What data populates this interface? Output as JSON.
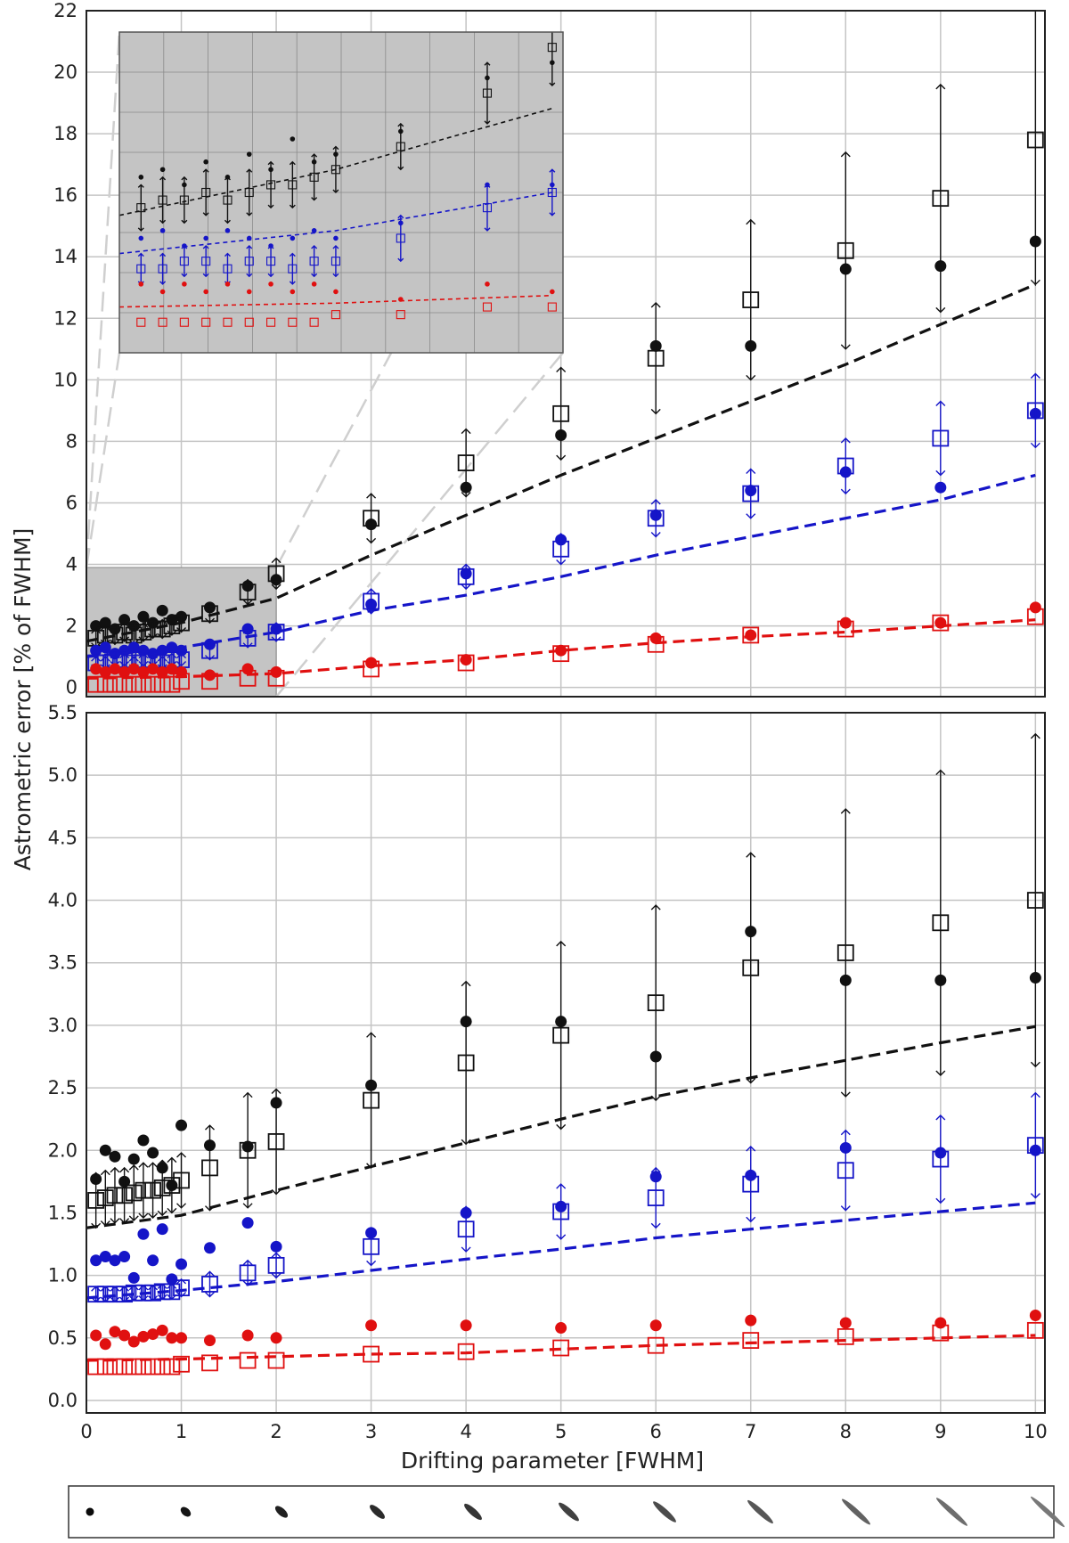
{
  "figure": {
    "ylabel": "Astrometric error  [% of FWHM]",
    "xlabel": "Drifting parameter [FWHM]"
  },
  "colors": {
    "black": "#111111",
    "blue": "#1515c8",
    "red": "#e01010",
    "grid": "#c4c4c4",
    "inset_bg": "#c4c4c4"
  },
  "chart_data": [
    {
      "type": "scatter",
      "panel": "top",
      "xlim": [
        0,
        10.1
      ],
      "ylim": [
        -0.3,
        22
      ],
      "yticks": [
        0,
        2,
        4,
        6,
        8,
        10,
        12,
        14,
        16,
        18,
        20,
        22
      ],
      "xticks": [
        0,
        1,
        2,
        3,
        4,
        5,
        6,
        7,
        8,
        9,
        10
      ],
      "grid": true,
      "highlight_region": {
        "x": [
          0,
          2
        ],
        "y": [
          -0.3,
          3.9
        ]
      },
      "series": [
        {
          "name": "black filled circles",
          "color": "black",
          "marker": "circle",
          "x": [
            0.1,
            0.2,
            0.3,
            0.4,
            0.5,
            0.6,
            0.7,
            0.8,
            0.9,
            1.0,
            1.3,
            1.7,
            2.0,
            3.0,
            4.0,
            5.0,
            6.0,
            7.0,
            8.0,
            9.0,
            10.0
          ],
          "y": [
            2.0,
            2.1,
            1.9,
            2.2,
            2.0,
            2.3,
            2.1,
            2.5,
            2.2,
            2.3,
            2.6,
            3.3,
            3.5,
            5.3,
            6.5,
            8.2,
            11.1,
            11.1,
            13.6,
            13.7,
            14.5
          ]
        },
        {
          "name": "black open squares",
          "color": "black",
          "marker": "square",
          "x": [
            0.1,
            0.2,
            0.3,
            0.4,
            0.5,
            0.6,
            0.7,
            0.8,
            0.9,
            1.0,
            1.3,
            1.7,
            2.0,
            3.0,
            4.0,
            5.0,
            6.0,
            7.0,
            8.0,
            9.0,
            10.0
          ],
          "y": [
            1.6,
            1.7,
            1.7,
            1.8,
            1.7,
            1.8,
            1.9,
            1.9,
            2.0,
            2.1,
            2.4,
            3.1,
            3.7,
            5.5,
            7.3,
            8.9,
            10.7,
            12.6,
            14.2,
            15.9,
            17.8
          ],
          "err": [
            0.3,
            0.3,
            0.3,
            0.3,
            0.3,
            0.3,
            0.3,
            0.3,
            0.3,
            0.3,
            0.3,
            0.4,
            0.5,
            0.8,
            1.1,
            1.5,
            1.8,
            2.6,
            3.2,
            3.7,
            4.7
          ]
        },
        {
          "name": "black fit",
          "color": "black",
          "style": "dashed",
          "x": [
            0,
            1,
            2,
            3,
            4,
            5,
            6,
            7,
            8,
            9,
            10
          ],
          "y": [
            1.5,
            2.1,
            2.9,
            4.3,
            5.6,
            6.9,
            8.1,
            9.3,
            10.5,
            11.8,
            13.1
          ]
        },
        {
          "name": "blue filled circles",
          "color": "blue",
          "marker": "circle",
          "x": [
            0.1,
            0.2,
            0.3,
            0.4,
            0.5,
            0.6,
            0.7,
            0.8,
            0.9,
            1.0,
            1.3,
            1.7,
            2.0,
            3.0,
            4.0,
            5.0,
            6.0,
            7.0,
            8.0,
            9.0,
            10.0
          ],
          "y": [
            1.2,
            1.3,
            1.1,
            1.2,
            1.3,
            1.2,
            1.1,
            1.2,
            1.3,
            1.2,
            1.4,
            1.9,
            1.9,
            2.7,
            3.7,
            4.8,
            5.6,
            6.4,
            7.0,
            6.5,
            8.9
          ]
        },
        {
          "name": "blue open squares",
          "color": "blue",
          "marker": "square",
          "x": [
            0.1,
            0.2,
            0.3,
            0.4,
            0.5,
            0.6,
            0.7,
            0.8,
            0.9,
            1.0,
            1.3,
            1.7,
            2.0,
            3.0,
            4.0,
            5.0,
            6.0,
            7.0,
            8.0,
            9.0,
            10.0
          ],
          "y": [
            0.8,
            0.8,
            0.9,
            0.9,
            0.8,
            0.9,
            0.9,
            0.8,
            0.9,
            0.9,
            1.2,
            1.6,
            1.8,
            2.8,
            3.6,
            4.5,
            5.5,
            6.3,
            7.2,
            8.1,
            9.0
          ],
          "err": [
            0.2,
            0.2,
            0.2,
            0.2,
            0.2,
            0.2,
            0.2,
            0.2,
            0.2,
            0.2,
            0.3,
            0.3,
            0.3,
            0.4,
            0.4,
            0.5,
            0.6,
            0.8,
            0.9,
            1.2,
            1.2
          ]
        },
        {
          "name": "blue fit",
          "color": "blue",
          "style": "dashed",
          "x": [
            0,
            1,
            2,
            3,
            4,
            5,
            6,
            7,
            8,
            9,
            10
          ],
          "y": [
            1.0,
            1.3,
            1.8,
            2.5,
            3.0,
            3.6,
            4.3,
            4.9,
            5.5,
            6.1,
            6.9
          ]
        },
        {
          "name": "red filled circles",
          "color": "red",
          "marker": "circle",
          "x": [
            0.1,
            0.2,
            0.3,
            0.4,
            0.5,
            0.6,
            0.7,
            0.8,
            0.9,
            1.0,
            1.3,
            1.7,
            2.0,
            3.0,
            4.0,
            5.0,
            6.0,
            7.0,
            8.0,
            9.0,
            10.0
          ],
          "y": [
            0.6,
            0.5,
            0.6,
            0.5,
            0.6,
            0.5,
            0.6,
            0.5,
            0.6,
            0.5,
            0.4,
            0.6,
            0.5,
            0.8,
            0.9,
            1.2,
            1.6,
            1.7,
            2.1,
            2.1,
            2.6
          ]
        },
        {
          "name": "red open squares",
          "color": "red",
          "marker": "square",
          "x": [
            0.1,
            0.2,
            0.3,
            0.4,
            0.5,
            0.6,
            0.7,
            0.8,
            0.9,
            1.0,
            1.3,
            1.7,
            2.0,
            3.0,
            4.0,
            5.0,
            6.0,
            7.0,
            8.0,
            9.0,
            10.0
          ],
          "y": [
            0.1,
            0.1,
            0.1,
            0.1,
            0.1,
            0.1,
            0.1,
            0.1,
            0.1,
            0.2,
            0.2,
            0.3,
            0.3,
            0.6,
            0.8,
            1.1,
            1.4,
            1.7,
            1.9,
            2.1,
            2.3
          ]
        },
        {
          "name": "red fit",
          "color": "red",
          "style": "dashed",
          "x": [
            0,
            1,
            2,
            3,
            4,
            5,
            6,
            7,
            8,
            9,
            10
          ],
          "y": [
            0.3,
            0.35,
            0.45,
            0.7,
            0.9,
            1.2,
            1.45,
            1.65,
            1.8,
            2.0,
            2.2
          ]
        }
      ]
    },
    {
      "type": "scatter",
      "panel": "bottom",
      "xlim": [
        0,
        10.1
      ],
      "ylim": [
        -0.1,
        5.5
      ],
      "yticks": [
        0.0,
        0.5,
        1.0,
        1.5,
        2.0,
        2.5,
        3.0,
        3.5,
        4.0,
        4.5,
        5.0,
        5.5
      ],
      "xticks": [
        0,
        1,
        2,
        3,
        4,
        5,
        6,
        7,
        8,
        9,
        10
      ],
      "grid": true,
      "series": [
        {
          "name": "black filled circles",
          "color": "black",
          "marker": "circle",
          "x": [
            0.1,
            0.2,
            0.3,
            0.4,
            0.5,
            0.6,
            0.7,
            0.8,
            0.9,
            1.0,
            1.3,
            1.7,
            2.0,
            3.0,
            4.0,
            5.0,
            6.0,
            7.0,
            8.0,
            9.0,
            10.0
          ],
          "y": [
            1.77,
            2.0,
            1.95,
            1.75,
            1.93,
            2.08,
            1.98,
            1.86,
            1.72,
            2.2,
            2.04,
            2.03,
            2.38,
            2.52,
            3.03,
            3.03,
            2.75,
            3.75,
            3.36,
            3.36,
            3.38
          ]
        },
        {
          "name": "black open squares",
          "color": "black",
          "marker": "square",
          "x": [
            0.1,
            0.2,
            0.3,
            0.4,
            0.5,
            0.6,
            0.7,
            0.8,
            0.9,
            1.0,
            1.3,
            1.7,
            2.0,
            3.0,
            4.0,
            5.0,
            6.0,
            7.0,
            8.0,
            9.0,
            10.0
          ],
          "y": [
            1.6,
            1.62,
            1.64,
            1.64,
            1.66,
            1.68,
            1.68,
            1.7,
            1.72,
            1.76,
            1.86,
            2.0,
            2.07,
            2.4,
            2.7,
            2.92,
            3.18,
            3.46,
            3.58,
            3.82,
            4.0
          ],
          "err": [
            0.22,
            0.22,
            0.22,
            0.22,
            0.22,
            0.22,
            0.22,
            0.22,
            0.22,
            0.22,
            0.34,
            0.46,
            0.42,
            0.54,
            0.65,
            0.75,
            0.78,
            0.92,
            1.15,
            1.22,
            1.33
          ]
        },
        {
          "name": "black fit",
          "color": "black",
          "style": "dashed",
          "x": [
            0,
            1,
            2,
            3,
            4,
            5,
            6,
            7,
            8,
            9,
            10
          ],
          "y": [
            1.38,
            1.48,
            1.68,
            1.87,
            2.06,
            2.25,
            2.43,
            2.58,
            2.72,
            2.86,
            2.99
          ]
        },
        {
          "name": "blue filled circles",
          "color": "blue",
          "marker": "circle",
          "x": [
            0.1,
            0.2,
            0.3,
            0.4,
            0.5,
            0.6,
            0.7,
            0.8,
            0.9,
            1.0,
            1.3,
            1.7,
            2.0,
            3.0,
            4.0,
            5.0,
            6.0,
            7.0,
            8.0,
            9.0,
            10.0
          ],
          "y": [
            1.12,
            1.15,
            1.12,
            1.15,
            0.98,
            1.33,
            1.12,
            1.37,
            0.97,
            1.09,
            1.22,
            1.42,
            1.23,
            1.34,
            1.5,
            1.55,
            1.79,
            1.8,
            2.02,
            1.98,
            2.0
          ]
        },
        {
          "name": "blue open squares",
          "color": "blue",
          "marker": "square",
          "x": [
            0.1,
            0.2,
            0.3,
            0.4,
            0.5,
            0.6,
            0.7,
            0.8,
            0.9,
            1.0,
            1.3,
            1.7,
            2.0,
            3.0,
            4.0,
            5.0,
            6.0,
            7.0,
            8.0,
            9.0,
            10.0
          ],
          "y": [
            0.85,
            0.85,
            0.85,
            0.85,
            0.86,
            0.86,
            0.86,
            0.87,
            0.87,
            0.9,
            0.93,
            1.02,
            1.08,
            1.23,
            1.37,
            1.51,
            1.62,
            1.73,
            1.84,
            1.93,
            2.04
          ],
          "err": [
            0.06,
            0.06,
            0.06,
            0.06,
            0.06,
            0.06,
            0.06,
            0.06,
            0.06,
            0.07,
            0.1,
            0.1,
            0.1,
            0.15,
            0.18,
            0.22,
            0.24,
            0.3,
            0.32,
            0.35,
            0.42
          ]
        },
        {
          "name": "blue fit",
          "color": "blue",
          "style": "dashed",
          "x": [
            0,
            1,
            2,
            3,
            4,
            5,
            6,
            7,
            8,
            9,
            10
          ],
          "y": [
            0.82,
            0.88,
            0.95,
            1.04,
            1.13,
            1.21,
            1.3,
            1.37,
            1.44,
            1.51,
            1.58
          ]
        },
        {
          "name": "red filled circles",
          "color": "red",
          "marker": "circle",
          "x": [
            0.1,
            0.2,
            0.3,
            0.4,
            0.5,
            0.6,
            0.7,
            0.8,
            0.9,
            1.0,
            1.3,
            1.7,
            2.0,
            3.0,
            4.0,
            5.0,
            6.0,
            7.0,
            8.0,
            9.0,
            10.0
          ],
          "y": [
            0.52,
            0.45,
            0.55,
            0.52,
            0.47,
            0.51,
            0.53,
            0.56,
            0.5,
            0.5,
            0.48,
            0.52,
            0.5,
            0.6,
            0.6,
            0.58,
            0.6,
            0.64,
            0.62,
            0.62,
            0.68
          ]
        },
        {
          "name": "red open squares",
          "color": "red",
          "marker": "square",
          "x": [
            0.1,
            0.2,
            0.3,
            0.4,
            0.5,
            0.6,
            0.7,
            0.8,
            0.9,
            1.0,
            1.3,
            1.7,
            2.0,
            3.0,
            4.0,
            5.0,
            6.0,
            7.0,
            8.0,
            9.0,
            10.0
          ],
          "y": [
            0.27,
            0.27,
            0.27,
            0.27,
            0.27,
            0.27,
            0.27,
            0.27,
            0.27,
            0.29,
            0.3,
            0.32,
            0.32,
            0.37,
            0.39,
            0.42,
            0.44,
            0.48,
            0.51,
            0.54,
            0.56
          ]
        },
        {
          "name": "red fit",
          "color": "red",
          "style": "dashed",
          "x": [
            0,
            1,
            2,
            3,
            4,
            5,
            6,
            7,
            8,
            9,
            10
          ],
          "y": [
            0.32,
            0.33,
            0.35,
            0.37,
            0.38,
            0.41,
            0.44,
            0.46,
            0.48,
            0.5,
            0.52
          ]
        }
      ]
    }
  ],
  "inset": {
    "zoom_of": "top panel, x 0 to 2",
    "xlim": [
      0,
      2.05
    ],
    "ylim": [
      -0.3,
      3.9
    ],
    "series_ref": [
      0,
      1,
      2,
      3,
      4,
      5,
      6,
      7,
      8
    ],
    "max_x": 2.0
  },
  "psf_strip": {
    "drift_values": [
      0,
      1,
      2,
      3,
      4,
      5,
      6,
      7,
      8,
      9,
      10
    ],
    "icon": "psf-elongation-icon"
  }
}
